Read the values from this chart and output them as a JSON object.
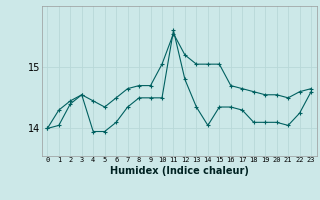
{
  "xlabel": "Humidex (Indice chaleur)",
  "background_color": "#cce8e8",
  "grid_color": "#b8d8d8",
  "line_color": "#006060",
  "x": [
    0,
    1,
    2,
    3,
    4,
    5,
    6,
    7,
    8,
    9,
    10,
    11,
    12,
    13,
    14,
    15,
    16,
    17,
    18,
    19,
    20,
    21,
    22,
    23
  ],
  "line1_upper": [
    14.0,
    14.3,
    14.45,
    14.55,
    14.45,
    14.35,
    14.5,
    14.65,
    14.7,
    14.7,
    15.05,
    15.55,
    15.2,
    15.05,
    15.05,
    15.05,
    14.7,
    14.65,
    14.6,
    14.55,
    14.55,
    14.5,
    14.6,
    14.65
  ],
  "line2_lower": [
    14.0,
    14.05,
    14.4,
    14.55,
    13.95,
    13.95,
    14.1,
    14.35,
    14.5,
    14.5,
    14.5,
    15.6,
    14.8,
    14.35,
    14.05,
    14.35,
    14.35,
    14.3,
    14.1,
    14.1,
    14.1,
    14.05,
    14.25,
    14.6
  ],
  "yticks": [
    14,
    15
  ],
  "ylim": [
    13.55,
    16.0
  ],
  "xlim": [
    -0.5,
    23.5
  ]
}
